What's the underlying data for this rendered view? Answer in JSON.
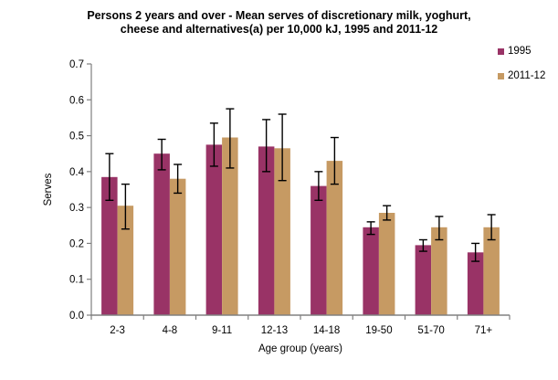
{
  "title": {
    "full": "Persons 2 years and over - Mean serves of discretionary milk, yoghurt, cheese and alternatives(a) per 10,000 kJ, 1995 and 2011-12",
    "line1": "Persons 2 years and over - Mean serves of discretionary milk, yoghurt,",
    "line2": "cheese and alternatives(a) per 10,000 kJ, 1995 and 2011-12"
  },
  "chart_data": {
    "type": "bar",
    "title": "Persons 2 years and over - Mean serves of discretionary milk, yoghurt, cheese and alternatives(a) per 10,000 kJ, 1995 and 2011-12",
    "categories": [
      "2-3",
      "4-8",
      "9-11",
      "12-13",
      "14-18",
      "19-50",
      "51-70",
      "71+"
    ],
    "series": [
      {
        "name": "1995",
        "color": "#993366",
        "values": [
          0.385,
          0.45,
          0.475,
          0.47,
          0.36,
          0.245,
          0.195,
          0.175
        ],
        "ci_low": [
          0.32,
          0.405,
          0.415,
          0.4,
          0.32,
          0.225,
          0.178,
          0.15
        ],
        "ci_high": [
          0.45,
          0.49,
          0.535,
          0.545,
          0.4,
          0.26,
          0.21,
          0.2
        ]
      },
      {
        "name": "2011-12",
        "color": "#C69A63",
        "values": [
          0.305,
          0.38,
          0.495,
          0.465,
          0.43,
          0.285,
          0.245,
          0.245
        ],
        "ci_low": [
          0.24,
          0.34,
          0.41,
          0.375,
          0.365,
          0.265,
          0.21,
          0.21
        ],
        "ci_high": [
          0.365,
          0.42,
          0.575,
          0.56,
          0.495,
          0.305,
          0.275,
          0.28
        ]
      }
    ],
    "error_bars": true,
    "xlabel": "Age group (years)",
    "ylabel": "Serves",
    "ylim": [
      0,
      0.7
    ],
    "ytick_step": 0.1,
    "ytick_labels": [
      "0.0",
      "0.1",
      "0.2",
      "0.3",
      "0.4",
      "0.5",
      "0.6",
      "0.7"
    ],
    "grid": false,
    "legend_position": "top-right",
    "axis_color": "#808080",
    "errorbar_color": "#000000",
    "text_color": "#000000",
    "background_color": "#FFFFFF"
  }
}
